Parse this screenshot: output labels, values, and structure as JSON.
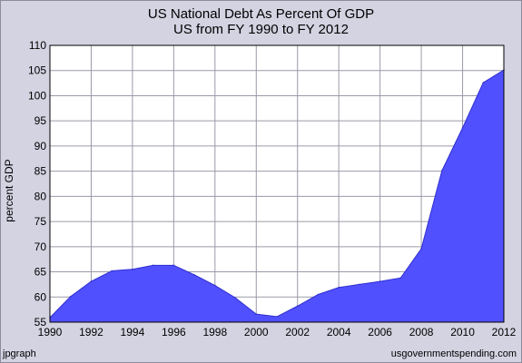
{
  "chart_data": {
    "type": "area",
    "title": "US National Debt As Percent Of GDP",
    "subtitle": "US from FY 1990 to FY 2012",
    "xlabel": "",
    "ylabel": "percent GDP",
    "xlim": [
      1990,
      2012
    ],
    "ylim": [
      55,
      110
    ],
    "xticks": [
      "1990",
      "1992",
      "1994",
      "1996",
      "1998",
      "2000",
      "2002",
      "2004",
      "2006",
      "2008",
      "2010",
      "2012"
    ],
    "yticks": [
      "55",
      "60",
      "65",
      "70",
      "75",
      "80",
      "85",
      "90",
      "95",
      "100",
      "105",
      "110"
    ],
    "grid": true,
    "fill_color": "#5050ff",
    "plot_background": "#ffffff",
    "series": [
      {
        "x": [
          1990,
          1991,
          1992,
          1993,
          1994,
          1995,
          1996,
          1997,
          1998,
          1999,
          2000,
          2001,
          2002,
          2003,
          2004,
          2005,
          2006,
          2007,
          2008,
          2009,
          2010,
          2011,
          2012
        ],
        "values": [
          55.9,
          60.1,
          63.1,
          65.2,
          65.5,
          66.3,
          66.3,
          64.4,
          62.3,
          59.8,
          56.6,
          56.1,
          58.2,
          60.5,
          61.9,
          62.5,
          63.1,
          63.8,
          69.6,
          85.1,
          93.6,
          102.6,
          105.1
        ]
      }
    ]
  },
  "footer": {
    "left": "jpgraph",
    "right": "usgovernmentspending.com"
  }
}
